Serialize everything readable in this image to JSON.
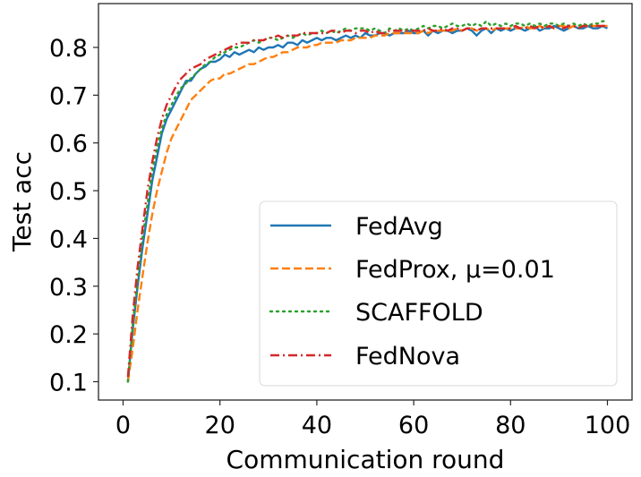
{
  "chart_data": {
    "type": "line",
    "title": "",
    "xlabel": "Communication round",
    "ylabel": "Test acc",
    "xlim": [
      -5,
      105
    ],
    "ylim": [
      0.07,
      0.89
    ],
    "xticks": [
      0,
      20,
      40,
      60,
      80,
      100
    ],
    "xtick_labels": [
      "0",
      "20",
      "40",
      "60",
      "80",
      "100"
    ],
    "yticks": [
      0.1,
      0.2,
      0.3,
      0.4,
      0.5,
      0.6,
      0.7,
      0.8
    ],
    "ytick_labels": [
      "0.1",
      "0.2",
      "0.3",
      "0.4",
      "0.5",
      "0.6",
      "0.7",
      "0.8"
    ],
    "grid": false,
    "legend_position": "lower-right",
    "x": [
      1,
      2,
      3,
      4,
      5,
      6,
      7,
      8,
      9,
      10,
      11,
      12,
      13,
      14,
      15,
      16,
      17,
      18,
      19,
      20,
      21,
      22,
      23,
      24,
      25,
      26,
      27,
      28,
      29,
      30,
      31,
      32,
      33,
      34,
      35,
      36,
      37,
      38,
      39,
      40,
      41,
      42,
      43,
      44,
      45,
      46,
      47,
      48,
      49,
      50,
      51,
      52,
      53,
      54,
      55,
      56,
      57,
      58,
      59,
      60,
      61,
      62,
      63,
      64,
      65,
      66,
      67,
      68,
      69,
      70,
      71,
      72,
      73,
      74,
      75,
      76,
      77,
      78,
      79,
      80,
      81,
      82,
      83,
      84,
      85,
      86,
      87,
      88,
      89,
      90,
      91,
      92,
      93,
      94,
      95,
      96,
      97,
      98,
      99,
      100
    ],
    "series": [
      {
        "name": "FedAvg",
        "color": "#1f77b4",
        "style": "solid",
        "values": [
          0.1,
          0.21,
          0.3,
          0.38,
          0.45,
          0.52,
          0.57,
          0.62,
          0.65,
          0.67,
          0.69,
          0.71,
          0.73,
          0.73,
          0.745,
          0.755,
          0.76,
          0.77,
          0.77,
          0.775,
          0.785,
          0.78,
          0.79,
          0.785,
          0.79,
          0.795,
          0.79,
          0.8,
          0.795,
          0.8,
          0.8,
          0.805,
          0.8,
          0.81,
          0.81,
          0.805,
          0.815,
          0.81,
          0.815,
          0.82,
          0.815,
          0.82,
          0.82,
          0.815,
          0.82,
          0.825,
          0.82,
          0.825,
          0.82,
          0.83,
          0.825,
          0.825,
          0.83,
          0.83,
          0.825,
          0.83,
          0.83,
          0.83,
          0.835,
          0.83,
          0.83,
          0.835,
          0.825,
          0.835,
          0.83,
          0.835,
          0.835,
          0.83,
          0.835,
          0.835,
          0.84,
          0.835,
          0.825,
          0.835,
          0.84,
          0.83,
          0.84,
          0.835,
          0.84,
          0.835,
          0.84,
          0.84,
          0.835,
          0.84,
          0.845,
          0.835,
          0.84,
          0.84,
          0.845,
          0.84,
          0.835,
          0.84,
          0.845,
          0.84,
          0.84,
          0.845,
          0.84,
          0.84,
          0.845,
          0.84
        ]
      },
      {
        "name": "FedProx, μ=0.01",
        "color": "#ff7f0e",
        "style": "dashed",
        "values": [
          0.1,
          0.17,
          0.25,
          0.32,
          0.39,
          0.45,
          0.5,
          0.54,
          0.58,
          0.61,
          0.63,
          0.65,
          0.67,
          0.69,
          0.7,
          0.71,
          0.72,
          0.73,
          0.735,
          0.735,
          0.745,
          0.745,
          0.75,
          0.755,
          0.76,
          0.765,
          0.765,
          0.77,
          0.775,
          0.78,
          0.78,
          0.785,
          0.79,
          0.79,
          0.795,
          0.8,
          0.8,
          0.8,
          0.805,
          0.805,
          0.81,
          0.81,
          0.81,
          0.81,
          0.815,
          0.815,
          0.815,
          0.82,
          0.82,
          0.82,
          0.82,
          0.825,
          0.825,
          0.825,
          0.83,
          0.83,
          0.83,
          0.83,
          0.83,
          0.83,
          0.83,
          0.835,
          0.83,
          0.835,
          0.835,
          0.835,
          0.835,
          0.835,
          0.84,
          0.835,
          0.84,
          0.84,
          0.835,
          0.84,
          0.84,
          0.835,
          0.84,
          0.84,
          0.84,
          0.84,
          0.84,
          0.84,
          0.845,
          0.84,
          0.84,
          0.845,
          0.84,
          0.845,
          0.84,
          0.845,
          0.845,
          0.84,
          0.845,
          0.845,
          0.845,
          0.845,
          0.845,
          0.845,
          0.845,
          0.845
        ]
      },
      {
        "name": "SCAFFOLD",
        "color": "#2ca02c",
        "style": "dotted",
        "values": [
          0.1,
          0.22,
          0.31,
          0.4,
          0.47,
          0.54,
          0.59,
          0.63,
          0.66,
          0.68,
          0.7,
          0.715,
          0.725,
          0.735,
          0.745,
          0.755,
          0.765,
          0.77,
          0.78,
          0.785,
          0.79,
          0.795,
          0.8,
          0.8,
          0.805,
          0.81,
          0.815,
          0.81,
          0.815,
          0.82,
          0.82,
          0.815,
          0.82,
          0.825,
          0.82,
          0.825,
          0.83,
          0.825,
          0.83,
          0.83,
          0.835,
          0.83,
          0.835,
          0.83,
          0.835,
          0.84,
          0.835,
          0.84,
          0.84,
          0.84,
          0.835,
          0.84,
          0.835,
          0.83,
          0.84,
          0.835,
          0.84,
          0.835,
          0.84,
          0.835,
          0.84,
          0.845,
          0.84,
          0.845,
          0.845,
          0.84,
          0.845,
          0.85,
          0.845,
          0.845,
          0.85,
          0.845,
          0.85,
          0.845,
          0.855,
          0.845,
          0.85,
          0.845,
          0.85,
          0.845,
          0.85,
          0.85,
          0.845,
          0.85,
          0.845,
          0.85,
          0.845,
          0.85,
          0.85,
          0.845,
          0.85,
          0.845,
          0.85,
          0.845,
          0.85,
          0.845,
          0.85,
          0.85,
          0.855,
          0.855
        ]
      },
      {
        "name": "FedNova",
        "color": "#d62728",
        "style": "dashdot",
        "values": [
          0.11,
          0.24,
          0.34,
          0.42,
          0.5,
          0.56,
          0.61,
          0.65,
          0.68,
          0.7,
          0.72,
          0.735,
          0.745,
          0.755,
          0.76,
          0.765,
          0.775,
          0.78,
          0.785,
          0.79,
          0.795,
          0.8,
          0.805,
          0.81,
          0.81,
          0.81,
          0.815,
          0.815,
          0.815,
          0.82,
          0.82,
          0.825,
          0.82,
          0.825,
          0.825,
          0.825,
          0.83,
          0.83,
          0.83,
          0.83,
          0.83,
          0.83,
          0.835,
          0.835,
          0.83,
          0.835,
          0.835,
          0.83,
          0.835,
          0.835,
          0.83,
          0.835,
          0.83,
          0.83,
          0.835,
          0.835,
          0.835,
          0.835,
          0.835,
          0.835,
          0.835,
          0.835,
          0.84,
          0.835,
          0.835,
          0.84,
          0.835,
          0.84,
          0.84,
          0.835,
          0.84,
          0.84,
          0.835,
          0.84,
          0.84,
          0.84,
          0.84,
          0.84,
          0.84,
          0.84,
          0.845,
          0.84,
          0.84,
          0.845,
          0.84,
          0.845,
          0.84,
          0.845,
          0.84,
          0.845,
          0.84,
          0.845,
          0.845,
          0.84,
          0.845,
          0.845,
          0.845,
          0.845,
          0.845,
          0.845
        ]
      }
    ]
  },
  "legend": {
    "items": [
      {
        "label": "FedAvg"
      },
      {
        "label": "FedProx, μ=0.01"
      },
      {
        "label": "SCAFFOLD"
      },
      {
        "label": "FedNova"
      }
    ]
  }
}
